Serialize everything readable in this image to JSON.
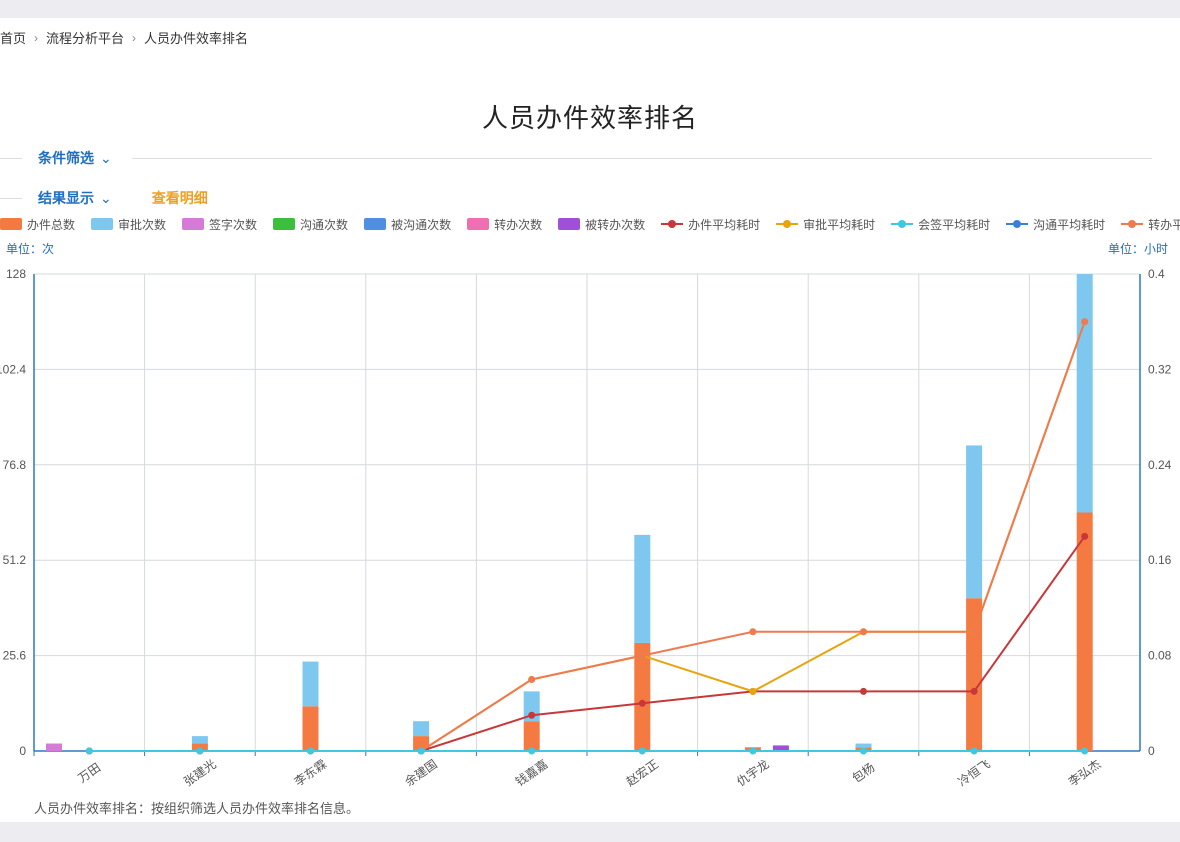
{
  "breadcrumb": {
    "items": [
      "首页",
      "流程分析平台",
      "人员办件效率排名"
    ]
  },
  "page_title": "人员办件效率排名",
  "filter_section": {
    "label": "条件筛选",
    "caret": "⌄"
  },
  "result_section": {
    "label": "结果显示",
    "caret": "⌄",
    "detail_link": "查看明细"
  },
  "units": {
    "left": "单位：次",
    "right": "单位：小时"
  },
  "footer_note": "人员办件效率排名：按组织筛选人员办件效率排名信息。",
  "legend": [
    {
      "name": "办件总数",
      "kind": "bar",
      "color": "#f47a42"
    },
    {
      "name": "审批次数",
      "kind": "bar",
      "color": "#7ec8f0"
    },
    {
      "name": "签字次数",
      "kind": "bar",
      "color": "#d67ad8"
    },
    {
      "name": "沟通次数",
      "kind": "bar",
      "color": "#3cbf3c"
    },
    {
      "name": "被沟通次数",
      "kind": "bar",
      "color": "#4f8fe0"
    },
    {
      "name": "转办次数",
      "kind": "bar",
      "color": "#f06fb0"
    },
    {
      "name": "被转办次数",
      "kind": "bar",
      "color": "#a050d8"
    },
    {
      "name": "办件平均耗时",
      "kind": "line",
      "color": "#c8383a"
    },
    {
      "name": "审批平均耗时",
      "kind": "line",
      "color": "#e8a40c"
    },
    {
      "name": "会签平均耗时",
      "kind": "line",
      "color": "#40c8e0"
    },
    {
      "name": "沟通平均耗时",
      "kind": "line",
      "color": "#3a80d8"
    },
    {
      "name": "转办平均耗时",
      "kind": "line",
      "color": "#f07a50"
    }
  ],
  "chart_data": {
    "type": "bar",
    "categories": [
      "万田",
      "张建光",
      "李东霖",
      "余建国",
      "钱嘉嘉",
      "赵宏正",
      "仇宇龙",
      "包杨",
      "冷恒飞",
      "李弘杰"
    ],
    "y_left": {
      "ticks": [
        "0",
        "25.6",
        "51.2",
        "76.8",
        "102.4",
        "128"
      ],
      "range": [
        0,
        128
      ]
    },
    "y_right": {
      "ticks": [
        "0",
        "0.08",
        "0.16",
        "0.24",
        "0.32",
        "0.4"
      ],
      "range": [
        0,
        0.4
      ]
    },
    "grid": true,
    "legend_position": "top",
    "bar_series": [
      {
        "name": "办件总数",
        "stack": "a",
        "values": [
          0,
          2,
          12,
          4,
          8,
          29,
          1,
          1,
          41,
          64
        ]
      },
      {
        "name": "审批次数",
        "stack": "a",
        "values": [
          0,
          2,
          12,
          4,
          8,
          29,
          0,
          1,
          41,
          64
        ]
      },
      {
        "name": "签字次数",
        "stack": "b",
        "values": [
          2,
          0,
          0,
          0,
          0,
          0,
          0,
          0,
          0,
          0
        ]
      },
      {
        "name": "被转办次数",
        "stack": "c",
        "values": [
          0,
          0,
          0,
          0,
          0,
          0,
          1.5,
          0,
          0,
          0
        ]
      }
    ],
    "line_series": [
      {
        "name": "办件平均耗时",
        "values": [
          0,
          0,
          0,
          0,
          0.03,
          0.04,
          0.05,
          0.05,
          0.05,
          0.18
        ]
      },
      {
        "name": "审批平均耗时",
        "values": [
          0,
          0,
          0,
          0,
          0.06,
          0.08,
          0.05,
          0.1,
          0.1,
          0.36
        ]
      },
      {
        "name": "转办平均耗时",
        "values": [
          0,
          0,
          0,
          0,
          0.06,
          0.08,
          0.1,
          0.1,
          0.1,
          0.36
        ]
      },
      {
        "name": "会签平均耗时",
        "values": [
          0,
          0,
          0,
          0,
          0,
          0,
          0,
          0,
          0,
          0
        ]
      }
    ]
  }
}
